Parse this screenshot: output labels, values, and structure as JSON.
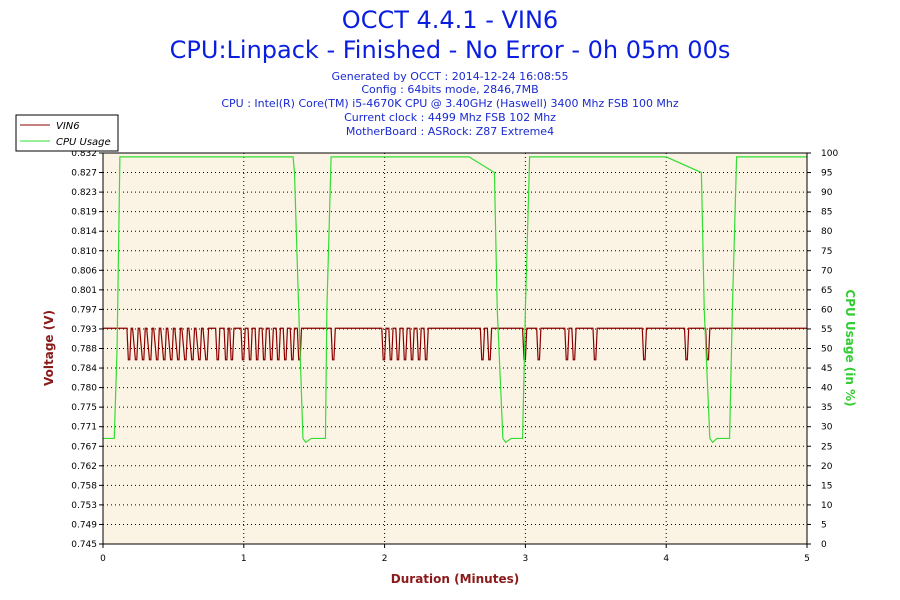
{
  "header": {
    "title": "OCCT 4.4.1 - VIN6",
    "subtitle": "CPU:Linpack - Finished - No Error - 0h 05m 00s",
    "info_lines": [
      "Generated by OCCT : 2014-12-24 16:08:55",
      "Config : 64bits mode, 2846,7MB",
      "CPU : Intel(R) Core(TM) i5-4670K CPU @ 3.40GHz (Haswell) 3400 Mhz FSB 100 Mhz",
      "Current clock : 4499 Mhz FSB 102 Mhz",
      "MotherBoard : ASRock: Z87 Extreme4"
    ]
  },
  "colors": {
    "title": "#0a1ee0",
    "info": "#1a2ad0",
    "plot_background": "#fbf4e4",
    "grid": "#000000",
    "voltage_series": "#8b0000",
    "cpu_series": "#33dd33",
    "ylabel_left": "#8b1a1a",
    "ylabel_right": "#33cc33",
    "xlabel": "#8b1a1a"
  },
  "chart_data": {
    "type": "line",
    "xlabel": "Duration (Minutes)",
    "ylabel": "Voltage (V)",
    "y2label": "CPU Usage (in %)",
    "xlim": [
      0,
      5
    ],
    "ylim": [
      0.745,
      0.832
    ],
    "y2lim": [
      0,
      100
    ],
    "x_ticks": [
      "0",
      "1",
      "2",
      "3",
      "4",
      "5"
    ],
    "y_ticks": [
      "0.745",
      "0.749",
      "0.753",
      "0.758",
      "0.762",
      "0.767",
      "0.771",
      "0.775",
      "0.780",
      "0.784",
      "0.788",
      "0.793",
      "0.797",
      "0.801",
      "0.806",
      "0.810",
      "0.814",
      "0.819",
      "0.823",
      "0.827",
      "0.832"
    ],
    "y2_ticks": [
      "0",
      "5",
      "10",
      "15",
      "20",
      "25",
      "30",
      "35",
      "40",
      "45",
      "50",
      "55",
      "60",
      "65",
      "70",
      "75",
      "80",
      "85",
      "90",
      "95",
      "100"
    ],
    "grid": true,
    "legend_position": "top-left",
    "series": [
      {
        "name": "VIN6",
        "axis": "left",
        "x": [
          0,
          0.17,
          0.18,
          0.19,
          0.2,
          0.21,
          0.23,
          0.24,
          0.25,
          0.26,
          0.28,
          0.29,
          0.3,
          0.31,
          0.33,
          0.34,
          0.35,
          0.36,
          0.38,
          0.39,
          0.4,
          0.41,
          0.43,
          0.44,
          0.45,
          0.46,
          0.48,
          0.49,
          0.5,
          0.51,
          0.53,
          0.54,
          0.55,
          0.56,
          0.58,
          0.59,
          0.6,
          0.61,
          0.63,
          0.64,
          0.65,
          0.66,
          0.68,
          0.69,
          0.7,
          0.71,
          0.73,
          0.74,
          0.75,
          0.76,
          0.8,
          0.81,
          0.82,
          0.83,
          0.86,
          0.87,
          0.88,
          0.89,
          0.9,
          0.91,
          0.92,
          0.93,
          0.94,
          0.95,
          0.98,
          0.99,
          1.0,
          1.01,
          1.03,
          1.04,
          1.05,
          1.06,
          1.08,
          1.09,
          1.1,
          1.11,
          1.13,
          1.14,
          1.15,
          1.16,
          1.18,
          1.19,
          1.2,
          1.21,
          1.23,
          1.24,
          1.25,
          1.26,
          1.28,
          1.29,
          1.3,
          1.31,
          1.33,
          1.34,
          1.35,
          1.36,
          1.38,
          1.39,
          1.4,
          1.41,
          1.62,
          1.63,
          1.64,
          1.65,
          1.98,
          1.99,
          2.0,
          2.01,
          2.03,
          2.04,
          2.05,
          2.06,
          2.08,
          2.09,
          2.1,
          2.11,
          2.13,
          2.14,
          2.15,
          2.16,
          2.18,
          2.19,
          2.2,
          2.21,
          2.23,
          2.24,
          2.25,
          2.26,
          2.28,
          2.29,
          2.3,
          2.31,
          2.68,
          2.69,
          2.7,
          2.71,
          2.73,
          2.74,
          2.75,
          2.76,
          2.98,
          2.99,
          3.0,
          3.01,
          3.08,
          3.09,
          3.1,
          3.11,
          3.28,
          3.29,
          3.3,
          3.31,
          3.33,
          3.34,
          3.35,
          3.36,
          3.48,
          3.49,
          3.5,
          3.51,
          3.83,
          3.84,
          3.85,
          3.86,
          4.13,
          4.14,
          4.15,
          4.16,
          4.28,
          4.29,
          4.3,
          4.31,
          5
        ],
        "values": [
          0.793,
          0.793,
          0.786,
          0.786,
          0.793,
          0.793,
          0.786,
          0.786,
          0.793,
          0.793,
          0.786,
          0.786,
          0.793,
          0.793,
          0.786,
          0.786,
          0.793,
          0.793,
          0.786,
          0.786,
          0.793,
          0.793,
          0.786,
          0.786,
          0.793,
          0.793,
          0.786,
          0.786,
          0.793,
          0.793,
          0.786,
          0.786,
          0.793,
          0.793,
          0.786,
          0.786,
          0.793,
          0.793,
          0.786,
          0.786,
          0.793,
          0.793,
          0.786,
          0.786,
          0.793,
          0.793,
          0.786,
          0.786,
          0.793,
          0.793,
          0.793,
          0.786,
          0.786,
          0.793,
          0.793,
          0.786,
          0.786,
          0.793,
          0.793,
          0.786,
          0.786,
          0.793,
          0.793,
          0.793,
          0.793,
          0.786,
          0.786,
          0.793,
          0.793,
          0.786,
          0.786,
          0.793,
          0.793,
          0.786,
          0.786,
          0.793,
          0.793,
          0.786,
          0.786,
          0.793,
          0.793,
          0.786,
          0.786,
          0.793,
          0.793,
          0.786,
          0.786,
          0.793,
          0.793,
          0.786,
          0.786,
          0.793,
          0.793,
          0.786,
          0.786,
          0.793,
          0.793,
          0.786,
          0.786,
          0.793,
          0.793,
          0.786,
          0.786,
          0.793,
          0.793,
          0.786,
          0.786,
          0.793,
          0.793,
          0.786,
          0.786,
          0.793,
          0.793,
          0.786,
          0.786,
          0.793,
          0.793,
          0.786,
          0.786,
          0.793,
          0.793,
          0.786,
          0.786,
          0.793,
          0.793,
          0.786,
          0.786,
          0.793,
          0.793,
          0.786,
          0.786,
          0.793,
          0.793,
          0.786,
          0.786,
          0.793,
          0.793,
          0.786,
          0.786,
          0.793,
          0.793,
          0.786,
          0.786,
          0.793,
          0.793,
          0.786,
          0.786,
          0.793,
          0.793,
          0.786,
          0.786,
          0.793,
          0.793,
          0.786,
          0.786,
          0.793,
          0.793,
          0.786,
          0.786,
          0.793,
          0.793,
          0.786,
          0.786,
          0.793,
          0.793,
          0.786,
          0.786,
          0.793,
          0.793,
          0.786,
          0.786,
          0.793,
          0.793
        ]
      },
      {
        "name": "CPU Usage",
        "axis": "right",
        "x": [
          0,
          0.08,
          0.1,
          0.12,
          0.14,
          0.3,
          0.7,
          1.0,
          1.3,
          1.35,
          1.36,
          1.39,
          1.42,
          1.44,
          1.48,
          1.58,
          1.59,
          1.62,
          1.64,
          1.8,
          2.2,
          2.6,
          2.78,
          2.8,
          2.84,
          2.86,
          2.9,
          2.98,
          3.0,
          3.03,
          3.05,
          3.2,
          3.6,
          4.0,
          4.25,
          4.27,
          4.31,
          4.33,
          4.36,
          4.45,
          4.47,
          4.5,
          4.52,
          4.7,
          5
        ],
        "values": [
          27,
          27,
          50,
          99,
          99,
          99,
          99,
          99,
          99,
          99,
          95,
          60,
          27,
          26,
          27,
          27,
          60,
          99,
          99,
          99,
          99,
          99,
          95,
          60,
          27,
          26,
          27,
          27,
          60,
          99,
          99,
          99,
          99,
          99,
          95,
          60,
          27,
          26,
          27,
          27,
          60,
          99,
          99,
          99,
          99
        ]
      }
    ]
  }
}
